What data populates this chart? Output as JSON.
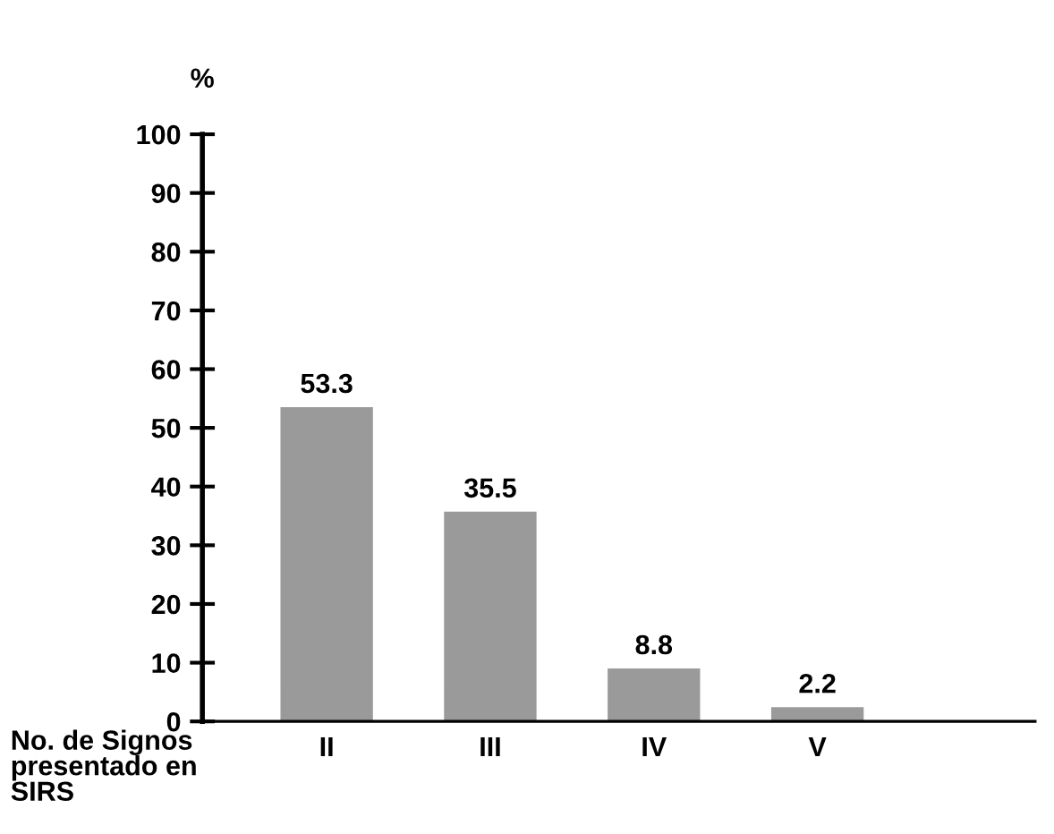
{
  "chart_data": {
    "type": "bar",
    "ylabel": "%",
    "xlabel": "No. de Signos\npresentado en\nSIRS",
    "categories": [
      "II",
      "III",
      "IV",
      "V"
    ],
    "values": [
      53.3,
      35.5,
      8.8,
      2.2
    ],
    "color": "#9a9a9a",
    "ylim": [
      0,
      100
    ],
    "yticks": [
      0,
      10,
      20,
      30,
      40,
      50,
      60,
      70,
      80,
      90,
      100
    ],
    "data_labels": true,
    "grid": false,
    "legend": false
  }
}
